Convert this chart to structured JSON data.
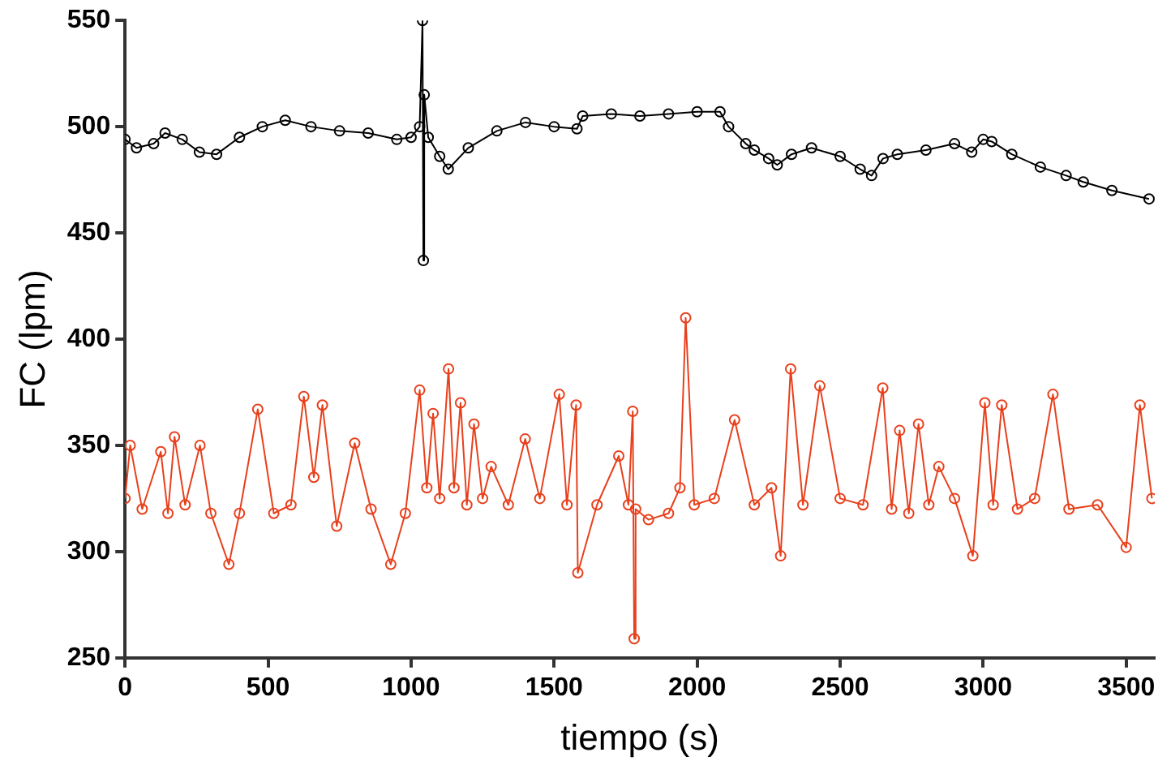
{
  "chart_data": {
    "type": "line",
    "xlabel": "tiempo (s)",
    "ylabel": "FC (lpm)",
    "xlim": [
      0,
      3600
    ],
    "xticks": [
      0,
      500,
      1000,
      1500,
      2000,
      2500,
      3000,
      3500
    ],
    "ylim": [
      250,
      550
    ],
    "yticks": [
      250,
      300,
      350,
      400,
      450,
      500,
      550
    ],
    "grid": false,
    "legend": false,
    "marker": "circle",
    "line_style": "solid",
    "series": [
      {
        "color": "#000000",
        "x": [
          0,
          40,
          100,
          140,
          200,
          260,
          320,
          400,
          480,
          560,
          650,
          750,
          850,
          950,
          1000,
          1030,
          1040,
          1043,
          1046,
          1060,
          1100,
          1130,
          1200,
          1300,
          1400,
          1500,
          1580,
          1600,
          1700,
          1800,
          1900,
          2000,
          2080,
          2110,
          2170,
          2200,
          2250,
          2280,
          2330,
          2400,
          2500,
          2570,
          2610,
          2650,
          2700,
          2800,
          2900,
          2960,
          3000,
          3030,
          3100,
          3200,
          3290,
          3350,
          3450,
          3580
        ],
        "values": [
          494,
          490,
          492,
          497,
          494,
          488,
          487,
          495,
          500,
          503,
          500,
          498,
          497,
          494,
          495,
          500,
          550,
          437,
          515,
          495,
          486,
          480,
          490,
          498,
          502,
          500,
          499,
          505,
          506,
          505,
          506,
          507,
          507,
          500,
          492,
          489,
          485,
          482,
          487,
          490,
          486,
          480,
          477,
          485,
          487,
          489,
          492,
          488,
          494,
          493,
          487,
          481,
          477,
          474,
          470,
          466
        ]
      },
      {
        "color": "#e8401c",
        "x": [
          0,
          18,
          60,
          125,
          150,
          173,
          210,
          262,
          300,
          363,
          400,
          464,
          520,
          580,
          625,
          660,
          690,
          740,
          803,
          860,
          929,
          980,
          1030,
          1055,
          1077,
          1100,
          1131,
          1150,
          1173,
          1195,
          1220,
          1250,
          1280,
          1340,
          1399,
          1450,
          1518,
          1545,
          1577,
          1583,
          1650,
          1726,
          1760,
          1775,
          1780,
          1785,
          1830,
          1900,
          1940,
          1960,
          1990,
          2060,
          2131,
          2200,
          2260,
          2292,
          2327,
          2370,
          2429,
          2500,
          2580,
          2649,
          2680,
          2708,
          2740,
          2774,
          2810,
          2845,
          2900,
          2964,
          3006,
          3035,
          3065,
          3120,
          3180,
          3244,
          3300,
          3400,
          3500,
          3548,
          3590
        ],
        "values": [
          325,
          350,
          320,
          347,
          318,
          354,
          322,
          350,
          318,
          294,
          318,
          367,
          318,
          322,
          373,
          335,
          369,
          312,
          351,
          320,
          294,
          318,
          376,
          330,
          365,
          325,
          386,
          330,
          370,
          322,
          360,
          325,
          340,
          322,
          353,
          325,
          374,
          322,
          369,
          290,
          322,
          345,
          322,
          366,
          259,
          320,
          315,
          318,
          330,
          410,
          322,
          325,
          362,
          322,
          330,
          298,
          386,
          322,
          378,
          325,
          322,
          377,
          320,
          357,
          318,
          360,
          322,
          340,
          325,
          298,
          370,
          322,
          369,
          320,
          325,
          374,
          320,
          322,
          302,
          369,
          325
        ]
      }
    ]
  }
}
